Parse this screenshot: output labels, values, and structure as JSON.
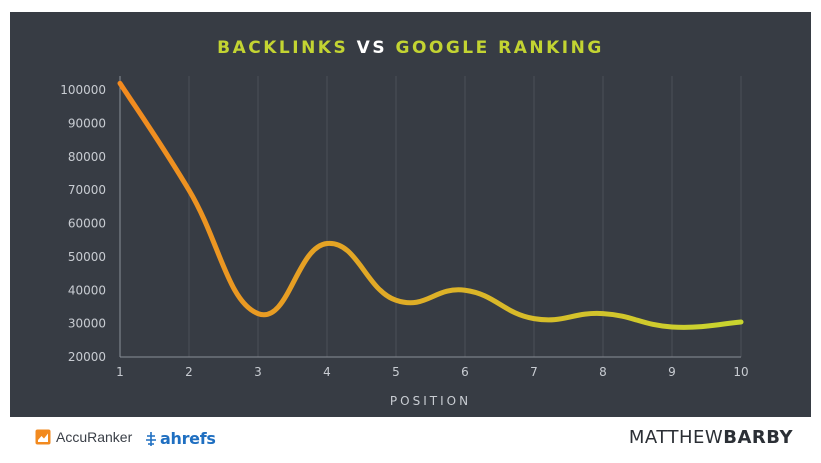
{
  "chart_data": {
    "type": "line",
    "title": "BACKLINKS VS GOOGLE RANKING",
    "title_parts": [
      "BACKLINKS",
      "VS",
      "GOOGLE RANKING"
    ],
    "xlabel": "POSITION",
    "ylabel": "",
    "x": [
      1,
      2,
      3,
      4,
      5,
      6,
      7,
      8,
      9,
      10
    ],
    "series": [
      {
        "values": [
          102000,
          70000,
          33000,
          54000,
          37000,
          40000,
          31500,
          33000,
          29000,
          30500
        ]
      }
    ],
    "xlim": [
      1,
      10
    ],
    "ylim": [
      20000,
      100000
    ],
    "yticks": [
      "20000",
      "30000",
      "40000",
      "50000",
      "60000",
      "70000",
      "80000",
      "90000",
      "100000"
    ],
    "xticks": [
      "1",
      "2",
      "3",
      "4",
      "5",
      "6",
      "7",
      "8",
      "9",
      "10"
    ],
    "grid": "vertical",
    "colors": {
      "background": "#373c44",
      "line_start": "#f28a1f",
      "line_end": "#c9d62f",
      "title_accent": "#c3d432",
      "grid": "#4b5058",
      "text": "#c8ccd2"
    }
  },
  "footer": {
    "accuranker_label": "AccuRanker",
    "ahrefs_label": "ahrefs",
    "author_first": "MATTHEW",
    "author_last": "BARBY"
  }
}
